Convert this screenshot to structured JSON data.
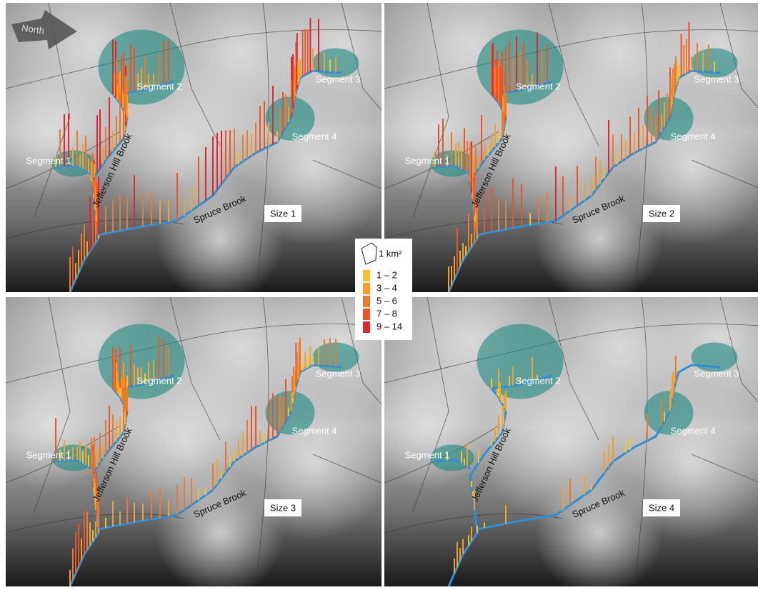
{
  "compass": {
    "label": "North"
  },
  "panels": [
    {
      "size_label": "Size 1",
      "segments": [
        "Segment 1",
        "Segment 2",
        "Segment 3",
        "Segment 4"
      ],
      "streams": [
        "Jefferson Hill Brook",
        "Spruce Brook"
      ]
    },
    {
      "size_label": "Size 2",
      "segments": [
        "Segment 1",
        "Segment 2",
        "Segment 3",
        "Segment 4"
      ],
      "streams": [
        "Jefferson Hill Brook",
        "Spruce Brook"
      ]
    },
    {
      "size_label": "Size 3",
      "segments": [
        "Segment 1",
        "Segment 2",
        "Segment 3",
        "Segment 4"
      ],
      "streams": [
        "Jefferson Hill Brook",
        "Spruce Brook"
      ]
    },
    {
      "size_label": "Size 4",
      "segments": [
        "Segment 1",
        "Segment 2",
        "Segment 3",
        "Segment 4"
      ],
      "streams": [
        "Jefferson Hill Brook",
        "Spruce Brook"
      ]
    }
  ],
  "legend": {
    "area_label": "1 km²",
    "classes": [
      {
        "label": "1 – 2",
        "color": "#f6c12e"
      },
      {
        "label": "3 – 4",
        "color": "#f3a12a"
      },
      {
        "label": "5 – 6",
        "color": "#ee7a28"
      },
      {
        "label": "7 – 8",
        "color": "#e9542a"
      },
      {
        "label": "9 – 14",
        "color": "#e3262b"
      }
    ]
  }
}
